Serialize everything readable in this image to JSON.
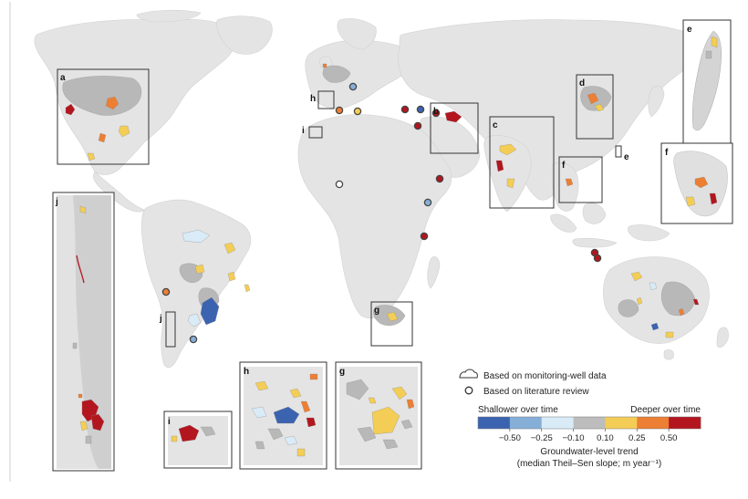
{
  "palette": {
    "land": "#e4e4e4",
    "land_edge": "#d0d0d0",
    "ocean": "#ffffff",
    "region_grey": "#b8b8b8",
    "frame": "#333333"
  },
  "colorbar": {
    "left_label": "Shallower over time",
    "right_label": "Deeper over time",
    "colors": [
      "#3b63b0",
      "#86afd8",
      "#d9ebf6",
      "#bdbdbd",
      "#f3cd55",
      "#ec7f34",
      "#b3161f"
    ],
    "ticks": [
      "−0.50",
      "−0.25",
      "−0.10",
      "0.10",
      "0.25",
      "0.50"
    ],
    "title": "Groundwater-level trend",
    "subtitle": "(median Theil–Sen slope; m year⁻¹)"
  },
  "legend": {
    "monitoring": "Based on monitoring-well data",
    "literature": "Based on literature review"
  },
  "panels": [
    {
      "id": "a",
      "label": "a"
    },
    {
      "id": "b",
      "label": "b"
    },
    {
      "id": "c",
      "label": "c"
    },
    {
      "id": "d",
      "label": "d"
    },
    {
      "id": "e",
      "label": "e"
    },
    {
      "id": "f",
      "label": "f"
    },
    {
      "id": "g",
      "label": "g"
    },
    {
      "id": "h",
      "label": "h"
    },
    {
      "id": "i",
      "label": "i"
    },
    {
      "id": "j",
      "label": "j"
    }
  ],
  "map_labels": [
    {
      "id": "h",
      "label": "h"
    },
    {
      "id": "i",
      "label": "i"
    },
    {
      "id": "e",
      "label": "e"
    },
    {
      "id": "j",
      "label": "j"
    }
  ],
  "literature_sites": [
    {
      "name": "site-spain",
      "trend": "deeper",
      "color": "#ec7f34"
    },
    {
      "name": "site-italy",
      "trend": "shallower",
      "color": "#86afd8"
    },
    {
      "name": "site-greece",
      "trend": "deeper",
      "color": "#b3161f"
    },
    {
      "name": "site-turkey",
      "trend": "shallower",
      "color": "#3b63b0"
    },
    {
      "name": "site-cyprus",
      "trend": "deeper",
      "color": "#b3161f"
    },
    {
      "name": "site-egypt",
      "trend": "deeper",
      "color": "#b3161f"
    },
    {
      "name": "site-morocco",
      "trend": "slight-deeper",
      "color": "#f3cd55"
    },
    {
      "name": "site-sahel",
      "trend": "stable",
      "color": "#ffffff"
    },
    {
      "name": "site-arabia",
      "trend": "deeper",
      "color": "#b3161f"
    },
    {
      "name": "site-ethiopia",
      "trend": "shallower",
      "color": "#86afd8"
    },
    {
      "name": "site-kenya",
      "trend": "deeper",
      "color": "#b3161f"
    },
    {
      "name": "site-peru",
      "trend": "deeper",
      "color": "#ec7f34"
    },
    {
      "name": "site-argentina",
      "trend": "shallower",
      "color": "#86afd8"
    },
    {
      "name": "site-indonesia-1",
      "trend": "deeper",
      "color": "#b3161f"
    },
    {
      "name": "site-indonesia-2",
      "trend": "deeper",
      "color": "#b3161f"
    }
  ]
}
